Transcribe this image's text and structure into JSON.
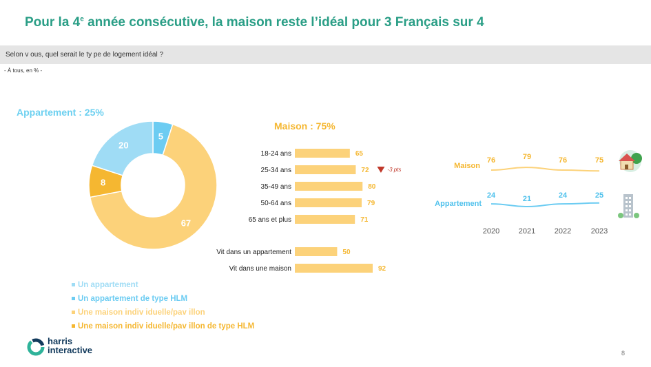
{
  "slide": {
    "title_pre": "Pour la 4",
    "title_sup": "e",
    "title_post": " année consécutive, la maison  reste l’idéal pour 3 Français sur 4",
    "question": "Selon v ous, quel serait le ty pe de logement idéal ?",
    "base": "- À tous, en %   -",
    "page_number": "8",
    "logo_line1": "harris",
    "logo_line2": "interactive"
  },
  "colors": {
    "appartement": "#9fdcf5",
    "appartement_hlm": "#6cccf2",
    "maison": "#fcd27a",
    "maison_hlm": "#f5b731",
    "title": "#2a9e86",
    "down": "#c0392b"
  },
  "chart_data": [
    {
      "type": "pie",
      "title": "Appartement : 25%",
      "categories": [
        "Un appartement",
        "Un appartement de type HLM",
        "Une maison indiv iduelle/pav illon",
        "Une maison indiv iduelle/pav illon de type HLM"
      ],
      "values": [
        20,
        5,
        67,
        8
      ],
      "colors": [
        "#9fdcf5",
        "#6cccf2",
        "#fcd27a",
        "#f5b731"
      ],
      "legend": "bottom"
    },
    {
      "type": "bar",
      "title": "Maison : 75%",
      "orientation": "horizontal",
      "groups": [
        {
          "categories": [
            "18-24 ans",
            "25-34 ans",
            "35-49 ans",
            "50-64 ans",
            "65 ans et plus"
          ],
          "values": [
            65,
            72,
            80,
            79,
            71
          ]
        },
        {
          "categories": [
            "Vit dans un appartement",
            "Vit dans une maison"
          ],
          "values": [
            50,
            92
          ]
        }
      ],
      "annotation": {
        "category": "25-34 ans",
        "text": "-3 pts",
        "direction": "down"
      }
    },
    {
      "type": "line",
      "x": [
        "2020",
        "2021",
        "2022",
        "2023"
      ],
      "series": [
        {
          "name": "Maison",
          "values": [
            76,
            79,
            76,
            75
          ]
        },
        {
          "name": "Appartement",
          "values": [
            24,
            21,
            24,
            25
          ]
        }
      ],
      "legend": "left"
    }
  ]
}
